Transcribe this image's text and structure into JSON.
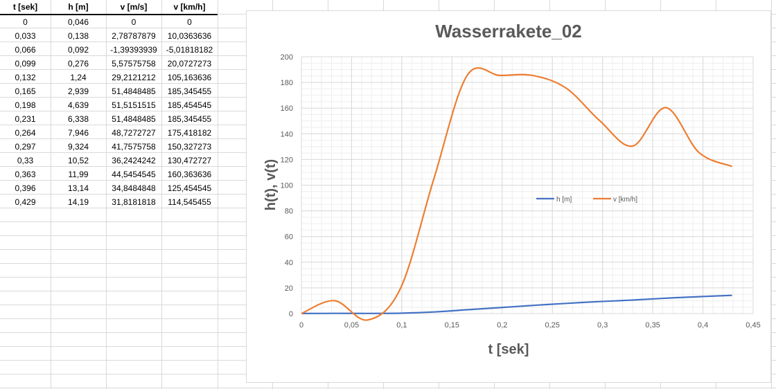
{
  "table": {
    "headers": [
      "t [sek]",
      "h [m]",
      "v [m/s]",
      "v [km/h]"
    ],
    "rows": [
      [
        "0",
        "0,046",
        "0",
        "0"
      ],
      [
        "0,033",
        "0,138",
        "2,78787879",
        "10,0363636"
      ],
      [
        "0,066",
        "0,092",
        "-1,39393939",
        "-5,01818182"
      ],
      [
        "0,099",
        "0,276",
        "5,57575758",
        "20,0727273"
      ],
      [
        "0,132",
        "1,24",
        "29,2121212",
        "105,163636"
      ],
      [
        "0,165",
        "2,939",
        "51,4848485",
        "185,345455"
      ],
      [
        "0,198",
        "4,639",
        "51,5151515",
        "185,454545"
      ],
      [
        "0,231",
        "6,338",
        "51,4848485",
        "185,345455"
      ],
      [
        "0,264",
        "7,946",
        "48,7272727",
        "175,418182"
      ],
      [
        "0,297",
        "9,324",
        "41,7575758",
        "150,327273"
      ],
      [
        "0,33",
        "10,52",
        "36,2424242",
        "130,472727"
      ],
      [
        "0,363",
        "11,99",
        "44,5454545",
        "160,363636"
      ],
      [
        "0,396",
        "13,14",
        "34,8484848",
        "125,454545"
      ],
      [
        "0,429",
        "14,19",
        "31,8181818",
        "114,545455"
      ]
    ]
  },
  "chart_data": {
    "type": "line",
    "title": "Wasserrakete_02",
    "xlabel": "t [sek]",
    "ylabel": "h(t), v(t)",
    "xlim": [
      0,
      0.45
    ],
    "ylim": [
      0,
      200
    ],
    "x_ticks": [
      0,
      0.05,
      0.1,
      0.15,
      0.2,
      0.25,
      0.3,
      0.35,
      0.4,
      0.45
    ],
    "x_tick_labels": [
      "0",
      "0,05",
      "0,1",
      "0,15",
      "0,2",
      "0,25",
      "0,3",
      "0,35",
      "0,4",
      "0,45"
    ],
    "y_ticks": [
      0,
      20,
      40,
      60,
      80,
      100,
      120,
      140,
      160,
      180,
      200
    ],
    "y_tick_labels": [
      "0",
      "20",
      "40",
      "60",
      "80",
      "100",
      "120",
      "140",
      "160",
      "180",
      "200"
    ],
    "grid": true,
    "smooth": true,
    "legend_position": "center-right",
    "x": [
      0,
      0.033,
      0.066,
      0.099,
      0.132,
      0.165,
      0.198,
      0.231,
      0.264,
      0.297,
      0.33,
      0.363,
      0.396,
      0.429
    ],
    "series": [
      {
        "name": "h [m]",
        "color": "#4472c4",
        "values": [
          0.046,
          0.138,
          0.092,
          0.276,
          1.24,
          2.939,
          4.639,
          6.338,
          7.946,
          9.324,
          10.52,
          11.99,
          13.14,
          14.19
        ]
      },
      {
        "name": "v [km/h]",
        "color": "#ed7d31",
        "values": [
          0,
          10.0363636,
          -5.01818182,
          20.0727273,
          105.163636,
          185.345455,
          185.454545,
          185.345455,
          175.418182,
          150.327273,
          130.472727,
          160.363636,
          125.454545,
          114.545455
        ]
      }
    ]
  }
}
